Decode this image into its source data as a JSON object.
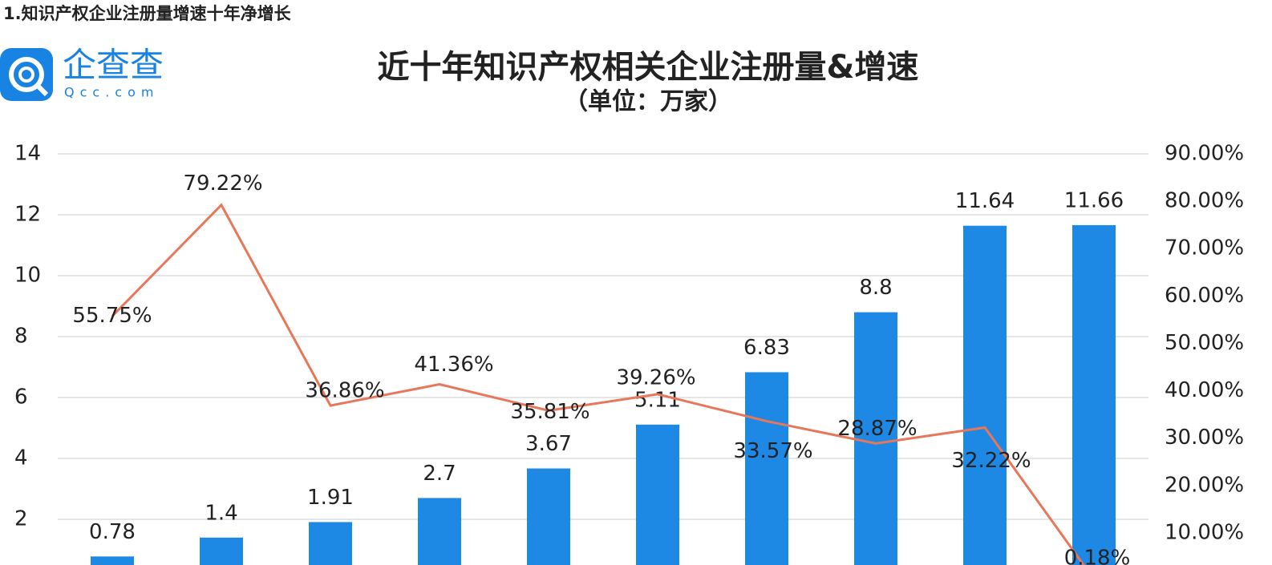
{
  "header": "1.知识产权企业注册量增速十年净增长",
  "logo": {
    "name": "企查查",
    "domain": "Qcc.com"
  },
  "chart_data": {
    "type": "bar",
    "title": "近十年知识产权相关企业注册量&增速",
    "subtitle": "（单位：万家）",
    "categories": [
      null,
      null,
      null,
      null,
      null,
      null,
      null,
      null,
      null,
      null
    ],
    "series": [
      {
        "type": "bar",
        "color": "#1e88e5",
        "values": [
          0.78,
          1.4,
          1.91,
          2.7,
          3.67,
          5.11,
          6.83,
          8.8,
          11.64,
          11.66
        ]
      },
      {
        "type": "line",
        "axis": "y2",
        "color": "#e8775a",
        "values": [
          55.75,
          79.22,
          36.86,
          41.36,
          35.81,
          39.26,
          33.57,
          28.87,
          32.22,
          0.18
        ],
        "value_labels": [
          "55.75%",
          "79.22%",
          "36.86%",
          "41.36%",
          "35.81%",
          "39.26%",
          "33.57%",
          "28.87%",
          "32.22%",
          "0.18%"
        ]
      }
    ],
    "ylim": [
      0,
      14
    ],
    "yticks": [
      2,
      4,
      6,
      8,
      10,
      12,
      14
    ],
    "y2lim": [
      0,
      90
    ],
    "y2ticks": [
      {
        "value": 10,
        "label": "10.00%"
      },
      {
        "value": 20,
        "label": "20.00%"
      },
      {
        "value": 30,
        "label": "30.00%"
      },
      {
        "value": 40,
        "label": "40.00%"
      },
      {
        "value": 50,
        "label": "50.00%"
      },
      {
        "value": 60,
        "label": "60.00%"
      },
      {
        "value": 70,
        "label": "70.00%"
      },
      {
        "value": 80,
        "label": "80.00%"
      },
      {
        "value": 90,
        "label": "90.00%"
      }
    ],
    "grid": true
  }
}
